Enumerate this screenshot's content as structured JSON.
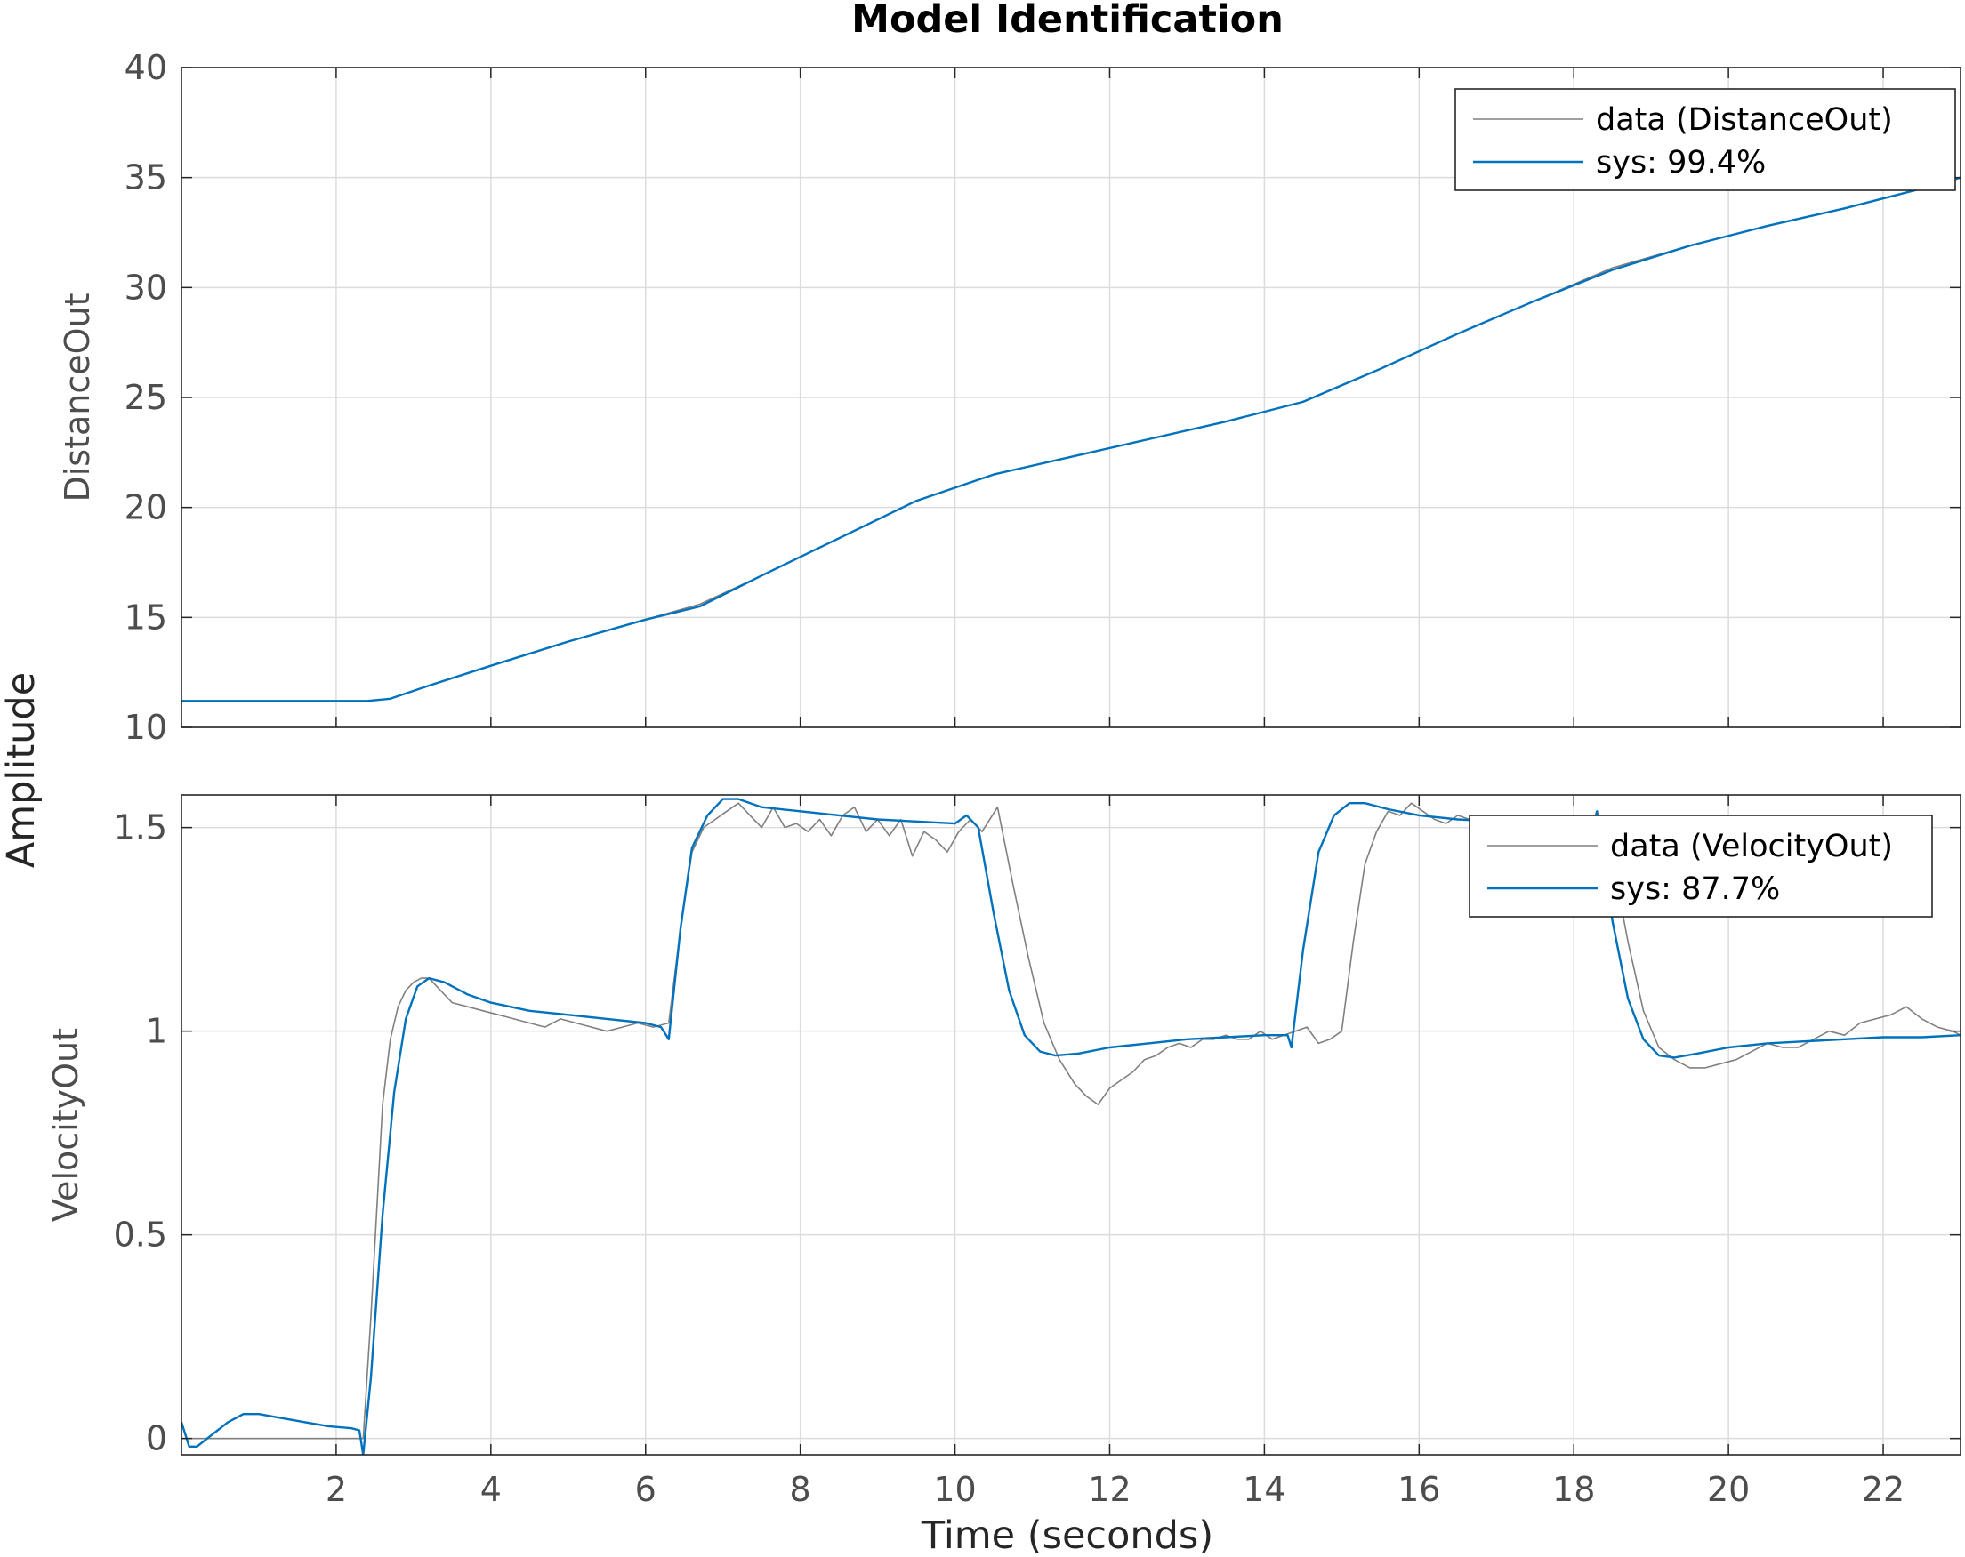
{
  "chart_data": {
    "type": "line",
    "title": "Model Identification",
    "xlabel": "Time (seconds)",
    "ylabel": "Amplitude",
    "xlim": [
      0,
      23
    ],
    "xticks": [
      2,
      4,
      6,
      8,
      10,
      12,
      14,
      16,
      18,
      20,
      22
    ],
    "xtick_labels": [
      "2",
      "4",
      "6",
      "8",
      "10",
      "12",
      "14",
      "16",
      "18",
      "20",
      "22"
    ],
    "grid": true,
    "colors": {
      "data": "#808080",
      "sys": "#0072bd",
      "grid": "#dcdcdc",
      "axes": "#262626"
    },
    "panels": [
      {
        "ylabel": "DistanceOut",
        "ylim": [
          10,
          40
        ],
        "yticks": [
          10,
          15,
          20,
          25,
          30,
          35,
          40
        ],
        "ytick_labels": [
          "10",
          "15",
          "20",
          "25",
          "30",
          "35",
          "40"
        ],
        "legend_position": "top-right",
        "series": [
          {
            "name": "data (DistanceOut)",
            "role": "data",
            "x": [
              0,
              2.4,
              2.7,
              3.2,
              4,
              5,
              6,
              6.7,
              7.5,
              8.5,
              9.5,
              10.5,
              11.5,
              12.5,
              13.5,
              14.5,
              15.5,
              16.5,
              17.5,
              18.5,
              19.5,
              20.5,
              21.5,
              22.5,
              23
            ],
            "y": [
              11.2,
              11.2,
              11.3,
              11.9,
              12.8,
              13.9,
              14.9,
              15.6,
              16.9,
              18.6,
              20.3,
              21.5,
              22.3,
              23.1,
              23.9,
              24.8,
              26.3,
              27.9,
              29.4,
              30.9,
              31.9,
              32.8,
              33.6,
              34.5,
              35
            ]
          },
          {
            "name": "sys: 99.4%",
            "role": "sys",
            "x": [
              0,
              2.4,
              2.7,
              3.2,
              4,
              5,
              6,
              6.7,
              7.5,
              8.5,
              9.5,
              10.5,
              11.5,
              12.5,
              13.5,
              14.5,
              15.5,
              16.5,
              17.5,
              18.5,
              19.5,
              20.5,
              21.5,
              22.5,
              23
            ],
            "y": [
              11.2,
              11.2,
              11.3,
              11.9,
              12.8,
              13.9,
              14.9,
              15.5,
              16.9,
              18.6,
              20.3,
              21.5,
              22.3,
              23.1,
              23.9,
              24.8,
              26.3,
              27.9,
              29.4,
              30.8,
              31.9,
              32.8,
              33.6,
              34.5,
              35
            ]
          }
        ]
      },
      {
        "ylabel": "VelocityOut",
        "ylim": [
          -0.04,
          1.58
        ],
        "yticks": [
          0,
          0.5,
          1,
          1.5
        ],
        "ytick_labels": [
          "0",
          "0.5",
          "1",
          "1.5"
        ],
        "legend_position": "top-right",
        "series": [
          {
            "name": "data (VelocityOut)",
            "role": "data",
            "x": [
              0,
              2.2,
              2.35,
              2.45,
              2.6,
              2.7,
              2.8,
              2.9,
              3.0,
              3.1,
              3.2,
              3.35,
              3.5,
              3.7,
              3.9,
              4.1,
              4.3,
              4.5,
              4.7,
              4.9,
              5.1,
              5.3,
              5.5,
              5.7,
              5.9,
              6.1,
              6.3,
              6.45,
              6.6,
              6.75,
              6.9,
              7.05,
              7.2,
              7.35,
              7.5,
              7.65,
              7.8,
              7.95,
              8.1,
              8.25,
              8.4,
              8.55,
              8.7,
              8.85,
              9.0,
              9.15,
              9.3,
              9.45,
              9.6,
              9.75,
              9.9,
              10.05,
              10.2,
              10.35,
              10.55,
              10.75,
              10.95,
              11.15,
              11.35,
              11.55,
              11.7,
              11.85,
              12.0,
              12.15,
              12.3,
              12.45,
              12.6,
              12.75,
              12.9,
              13.05,
              13.2,
              13.35,
              13.5,
              13.65,
              13.8,
              13.95,
              14.1,
              14.25,
              14.4,
              14.55,
              14.7,
              14.85,
              15.0,
              15.15,
              15.3,
              15.45,
              15.6,
              15.75,
              15.9,
              16.05,
              16.2,
              16.35,
              16.5,
              16.65,
              16.8,
              16.95,
              17.1,
              17.25,
              17.4,
              17.55,
              17.7,
              17.85,
              18.0,
              18.15,
              18.3,
              18.5,
              18.7,
              18.9,
              19.1,
              19.3,
              19.5,
              19.7,
              19.9,
              20.1,
              20.3,
              20.5,
              20.7,
              20.9,
              21.1,
              21.3,
              21.5,
              21.7,
              21.9,
              22.1,
              22.3,
              22.5,
              22.7,
              22.9,
              23.0
            ],
            "y": [
              0,
              0,
              0,
              0.3,
              0.82,
              0.98,
              1.06,
              1.1,
              1.12,
              1.13,
              1.13,
              1.1,
              1.07,
              1.06,
              1.05,
              1.04,
              1.03,
              1.02,
              1.01,
              1.03,
              1.02,
              1.01,
              1.0,
              1.01,
              1.02,
              1.01,
              1.02,
              1.25,
              1.44,
              1.5,
              1.52,
              1.54,
              1.56,
              1.53,
              1.5,
              1.55,
              1.5,
              1.51,
              1.49,
              1.52,
              1.48,
              1.53,
              1.55,
              1.49,
              1.52,
              1.48,
              1.52,
              1.43,
              1.49,
              1.47,
              1.44,
              1.49,
              1.52,
              1.49,
              1.55,
              1.36,
              1.18,
              1.02,
              0.93,
              0.87,
              0.84,
              0.82,
              0.86,
              0.88,
              0.9,
              0.93,
              0.94,
              0.96,
              0.97,
              0.96,
              0.98,
              0.98,
              0.99,
              0.98,
              0.98,
              1.0,
              0.98,
              0.99,
              1.0,
              1.01,
              0.97,
              0.98,
              1.0,
              1.22,
              1.41,
              1.49,
              1.54,
              1.53,
              1.56,
              1.54,
              1.52,
              1.51,
              1.53,
              1.52,
              1.51,
              1.52,
              1.51,
              1.53,
              1.52,
              1.51,
              1.53,
              1.52,
              1.51,
              1.5,
              1.52,
              1.42,
              1.22,
              1.05,
              0.96,
              0.93,
              0.91,
              0.91,
              0.92,
              0.93,
              0.95,
              0.97,
              0.96,
              0.96,
              0.98,
              1.0,
              0.99,
              1.02,
              1.03,
              1.04,
              1.06,
              1.03,
              1.01,
              1.0,
              0.99
            ]
          },
          {
            "name": "sys: 87.7%",
            "role": "sys",
            "x": [
              0,
              0.1,
              0.2,
              0.4,
              0.6,
              0.8,
              1.0,
              1.3,
              1.6,
              1.9,
              2.2,
              2.3,
              2.35,
              2.45,
              2.6,
              2.75,
              2.9,
              3.05,
              3.2,
              3.4,
              3.7,
              4.0,
              4.5,
              5.0,
              5.5,
              6.0,
              6.2,
              6.3,
              6.45,
              6.6,
              6.8,
              7.0,
              7.2,
              7.5,
              8.0,
              8.5,
              9.0,
              9.5,
              10.0,
              10.15,
              10.3,
              10.5,
              10.7,
              10.9,
              11.1,
              11.3,
              11.6,
              12.0,
              12.5,
              13.0,
              13.5,
              14.0,
              14.3,
              14.35,
              14.5,
              14.7,
              14.9,
              15.1,
              15.3,
              15.6,
              16.0,
              16.5,
              17.0,
              17.5,
              18.0,
              18.25,
              18.3,
              18.5,
              18.7,
              18.9,
              19.1,
              19.3,
              19.6,
              20.0,
              20.5,
              21.0,
              21.5,
              22.0,
              22.5,
              23.0
            ],
            "y": [
              0.04,
              -0.02,
              -0.02,
              0.01,
              0.04,
              0.06,
              0.06,
              0.05,
              0.04,
              0.03,
              0.025,
              0.02,
              -0.04,
              0.15,
              0.55,
              0.85,
              1.03,
              1.11,
              1.13,
              1.12,
              1.09,
              1.07,
              1.05,
              1.04,
              1.03,
              1.02,
              1.01,
              0.98,
              1.25,
              1.45,
              1.53,
              1.57,
              1.57,
              1.55,
              1.54,
              1.53,
              1.52,
              1.515,
              1.51,
              1.53,
              1.5,
              1.29,
              1.1,
              0.99,
              0.95,
              0.94,
              0.945,
              0.96,
              0.97,
              0.98,
              0.985,
              0.99,
              0.99,
              0.96,
              1.2,
              1.44,
              1.53,
              1.56,
              1.56,
              1.545,
              1.53,
              1.52,
              1.515,
              1.51,
              1.51,
              1.51,
              1.54,
              1.27,
              1.08,
              0.98,
              0.94,
              0.935,
              0.945,
              0.96,
              0.97,
              0.975,
              0.98,
              0.985,
              0.985,
              0.99
            ]
          }
        ]
      }
    ]
  }
}
